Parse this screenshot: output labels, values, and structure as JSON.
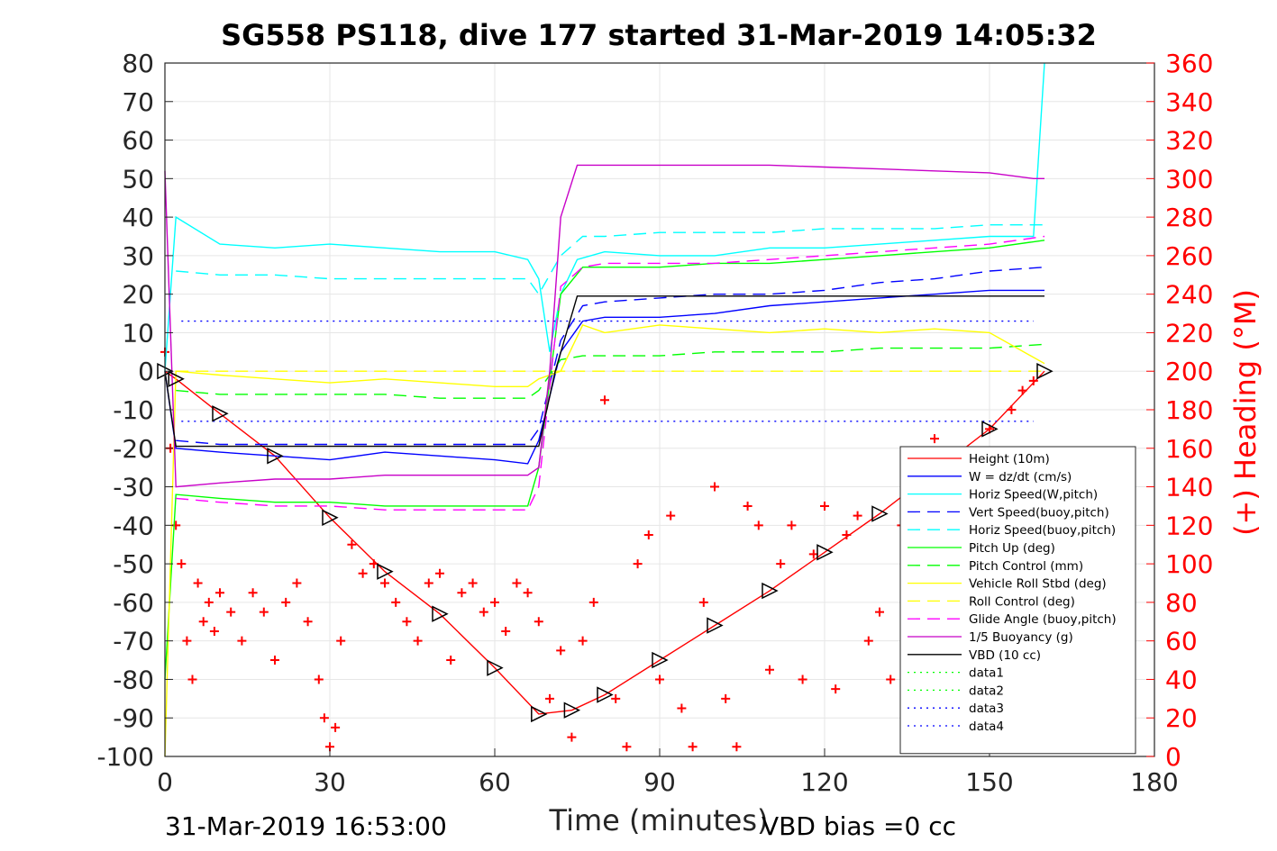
{
  "chart_data": {
    "type": "line",
    "title": "SG558 PS118, dive 177 started 31-Mar-2019 14:05:32",
    "xlabel": "Time (minutes)",
    "ylabel": "",
    "ylabel_right": "(+) Heading (°M)",
    "xlim": [
      0,
      180
    ],
    "ylim": [
      -100,
      80
    ],
    "ylim_right": [
      0,
      360
    ],
    "xticks": [
      "0",
      "30",
      "60",
      "90",
      "120",
      "150",
      "180"
    ],
    "yticks": [
      "80",
      "70",
      "60",
      "50",
      "40",
      "30",
      "20",
      "10",
      "0",
      "-10",
      "-20",
      "-30",
      "-40",
      "-50",
      "-60",
      "-70",
      "-80",
      "-90",
      "-100"
    ],
    "yticks_right": [
      "360",
      "340",
      "320",
      "300",
      "280",
      "260",
      "240",
      "220",
      "200",
      "180",
      "160",
      "140",
      "120",
      "100",
      "80",
      "60",
      "40",
      "20",
      "0"
    ],
    "grid": true,
    "legend_position": "bottom-right",
    "footer_left": "31-Mar-2019 16:53:00",
    "footer_right": "VBD bias =0 cc",
    "series": [
      {
        "name": "Height (10m)",
        "color": "#ff0000",
        "style": "solid",
        "x": [
          0,
          2,
          10,
          20,
          30,
          40,
          50,
          60,
          68,
          74,
          80,
          90,
          100,
          110,
          120,
          130,
          140,
          150,
          160
        ],
        "y": [
          0,
          -2,
          -11,
          -22,
          -38,
          -52,
          -63,
          -77,
          -89,
          -88,
          -84,
          -75,
          -66,
          -57,
          -47,
          -37,
          -26,
          -15,
          0
        ]
      },
      {
        "name": "W = dz/dt (cm/s)",
        "color": "#0000ff",
        "style": "solid",
        "x": [
          0,
          2,
          10,
          20,
          30,
          40,
          50,
          60,
          66,
          68,
          72,
          76,
          80,
          90,
          100,
          110,
          120,
          130,
          140,
          150,
          160
        ],
        "y": [
          0,
          -20,
          -21,
          -22,
          -23,
          -21,
          -22,
          -23,
          -24,
          -18,
          5,
          13,
          14,
          14,
          15,
          17,
          18,
          19,
          20,
          21,
          21
        ]
      },
      {
        "name": "Horiz Speed(W,pitch)",
        "color": "#00ffff",
        "style": "solid",
        "x": [
          0,
          2,
          10,
          20,
          30,
          40,
          50,
          60,
          66,
          68,
          70,
          72,
          75,
          80,
          90,
          100,
          110,
          120,
          130,
          140,
          150,
          158,
          160
        ],
        "y": [
          0,
          40,
          33,
          32,
          33,
          32,
          31,
          31,
          29,
          24,
          5,
          20,
          29,
          31,
          30,
          30,
          32,
          32,
          33,
          34,
          35,
          35,
          80
        ]
      },
      {
        "name": "Vert Speed(buoy,pitch)",
        "color": "#0000ff",
        "style": "dashed",
        "x": [
          2,
          10,
          20,
          30,
          40,
          50,
          60,
          66,
          68,
          72,
          76,
          80,
          90,
          100,
          110,
          120,
          130,
          140,
          150,
          160
        ],
        "y": [
          -18,
          -19,
          -19,
          -19,
          -19,
          -19,
          -19,
          -19,
          -15,
          8,
          17,
          18,
          19,
          20,
          20,
          21,
          23,
          24,
          26,
          27
        ]
      },
      {
        "name": "Horiz Speed(buoy,pitch)",
        "color": "#00ffff",
        "style": "dashed",
        "x": [
          2,
          10,
          20,
          30,
          40,
          50,
          60,
          66,
          68,
          72,
          76,
          80,
          90,
          100,
          110,
          120,
          130,
          140,
          150,
          160
        ],
        "y": [
          26,
          25,
          25,
          24,
          24,
          24,
          24,
          24,
          20,
          30,
          35,
          35,
          36,
          36,
          36,
          37,
          37,
          37,
          38,
          38
        ]
      },
      {
        "name": "Pitch Up (deg)",
        "color": "#00ff00",
        "style": "solid",
        "x": [
          0,
          2,
          10,
          20,
          30,
          40,
          50,
          60,
          66,
          68,
          72,
          76,
          80,
          90,
          100,
          110,
          120,
          130,
          140,
          150,
          160
        ],
        "y": [
          -80,
          -32,
          -33,
          -34,
          -34,
          -35,
          -35,
          -35,
          -35,
          -25,
          20,
          27,
          27,
          27,
          28,
          28,
          29,
          30,
          31,
          32,
          34
        ]
      },
      {
        "name": "Pitch Control (mm)",
        "color": "#00ff00",
        "style": "dashed",
        "x": [
          2,
          10,
          20,
          30,
          40,
          50,
          60,
          66,
          68,
          72,
          76,
          80,
          90,
          100,
          110,
          120,
          130,
          140,
          150,
          160
        ],
        "y": [
          -5,
          -6,
          -6,
          -6,
          -6,
          -7,
          -7,
          -7,
          -5,
          3,
          4,
          4,
          4,
          5,
          5,
          5,
          6,
          6,
          6,
          7
        ]
      },
      {
        "name": "Vehicle Roll Stbd (deg)",
        "color": "#ffff00",
        "style": "solid",
        "x": [
          0,
          2,
          10,
          20,
          30,
          40,
          50,
          60,
          66,
          68,
          72,
          76,
          80,
          90,
          100,
          110,
          120,
          130,
          140,
          150,
          160
        ],
        "y": [
          -100,
          0,
          -1,
          -2,
          -3,
          -2,
          -3,
          -4,
          -4,
          -2,
          0,
          12,
          10,
          12,
          11,
          10,
          11,
          10,
          11,
          10,
          2
        ]
      },
      {
        "name": "Roll Control (deg)",
        "color": "#ffff00",
        "style": "dashed",
        "x": [
          2,
          160
        ],
        "y": [
          0,
          0
        ]
      },
      {
        "name": "Glide Angle (buoy,pitch)",
        "color": "#ff00ff",
        "style": "dashed",
        "x": [
          2,
          10,
          20,
          30,
          40,
          50,
          60,
          66,
          68,
          72,
          76,
          80,
          90,
          100,
          110,
          120,
          130,
          140,
          150,
          160
        ],
        "y": [
          -33,
          -34,
          -35,
          -35,
          -36,
          -36,
          -36,
          -36,
          -30,
          22,
          27,
          28,
          28,
          28,
          29,
          30,
          31,
          32,
          33,
          35
        ]
      },
      {
        "name": "1/5 Buoyancy (g)",
        "color": "#c800c8",
        "style": "solid",
        "x": [
          0,
          2,
          10,
          20,
          30,
          40,
          50,
          60,
          66,
          68,
          70,
          72,
          75,
          80,
          90,
          100,
          110,
          120,
          130,
          140,
          150,
          158,
          160
        ],
        "y": [
          52,
          -30,
          -29,
          -28,
          -28,
          -27,
          -27,
          -27,
          -27,
          -25,
          0,
          40,
          53.5,
          53.5,
          53.5,
          53.5,
          53.5,
          53,
          52.5,
          52,
          51.5,
          50,
          50
        ]
      },
      {
        "name": "VBD (10 cc)",
        "color": "#000000",
        "style": "solid",
        "x": [
          0,
          2,
          10,
          20,
          30,
          40,
          50,
          60,
          68,
          71,
          75,
          80,
          90,
          100,
          110,
          120,
          130,
          140,
          150,
          160
        ],
        "y": [
          0,
          -19.5,
          -19.5,
          -19.5,
          -19.5,
          -19.5,
          -19.5,
          -19.5,
          -19.5,
          0,
          19.5,
          19.5,
          19.5,
          19.5,
          19.5,
          19.5,
          19.5,
          19.5,
          19.5,
          19.5
        ]
      },
      {
        "name": "data1",
        "color": "#00ff00",
        "style": "dotted",
        "x": [],
        "y": []
      },
      {
        "name": "data2",
        "color": "#00ff00",
        "style": "dotted",
        "x": [],
        "y": []
      },
      {
        "name": "data3",
        "color": "#0000ff",
        "style": "dotted",
        "x": [
          3,
          158
        ],
        "y": [
          13,
          13
        ]
      },
      {
        "name": "data4",
        "color": "#0000ff",
        "style": "dotted",
        "x": [
          3,
          158
        ],
        "y": [
          -13,
          -13
        ]
      }
    ],
    "heading": {
      "marker": "+",
      "color": "#ff0000",
      "axis": "right",
      "x": [
        0,
        1,
        2,
        3,
        4,
        5,
        6,
        7,
        8,
        9,
        10,
        12,
        14,
        16,
        18,
        20,
        22,
        24,
        26,
        28,
        29,
        30,
        31,
        32,
        34,
        36,
        38,
        40,
        42,
        44,
        46,
        48,
        50,
        52,
        54,
        56,
        58,
        60,
        62,
        64,
        66,
        68,
        70,
        72,
        74,
        76,
        78,
        80,
        82,
        84,
        86,
        88,
        90,
        92,
        94,
        96,
        98,
        100,
        102,
        104,
        106,
        108,
        110,
        112,
        114,
        116,
        118,
        120,
        122,
        124,
        126,
        128,
        130,
        132,
        134,
        136,
        138,
        140,
        142,
        144,
        146,
        148,
        150,
        152,
        154,
        156,
        158
      ],
      "y": [
        210,
        160,
        120,
        100,
        60,
        40,
        90,
        70,
        80,
        65,
        85,
        75,
        60,
        85,
        75,
        50,
        80,
        90,
        70,
        40,
        20,
        5,
        15,
        60,
        110,
        95,
        100,
        90,
        80,
        70,
        60,
        90,
        95,
        50,
        85,
        90,
        75,
        80,
        65,
        90,
        85,
        70,
        30,
        55,
        10,
        60,
        80,
        185,
        30,
        5,
        100,
        115,
        40,
        125,
        25,
        5,
        80,
        140,
        30,
        5,
        130,
        120,
        45,
        100,
        120,
        40,
        105,
        130,
        35,
        115,
        125,
        60,
        75,
        40,
        120,
        25,
        140,
        165,
        155,
        100,
        150,
        15,
        170,
        150,
        180,
        190,
        195
      ]
    }
  }
}
